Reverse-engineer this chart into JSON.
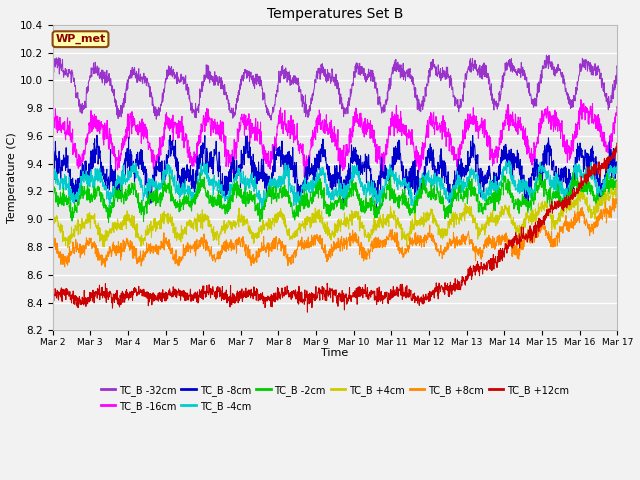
{
  "title": "Temperatures Set B",
  "xlabel": "Time",
  "ylabel": "Temperature (C)",
  "ylim": [
    8.2,
    10.4
  ],
  "xlim_days": [
    0,
    15
  ],
  "xtick_labels": [
    "Mar 2",
    "Mar 3",
    "Mar 4",
    "Mar 5",
    "Mar 6",
    "Mar 7",
    "Mar 8",
    "Mar 9",
    "Mar 10",
    "Mar 11",
    "Mar 12",
    "Mar 13",
    "Mar 14",
    "Mar 15",
    "Mar 16",
    "Mar 17"
  ],
  "series": [
    {
      "label": "TC_B -32cm",
      "color": "#9933CC",
      "base": 10.05,
      "amp1": 0.13,
      "amp2": 0.06,
      "period1": 1.0,
      "period2": 0.5,
      "trend_start": 0,
      "trend_end": 15,
      "trend_from": -0.02,
      "trend_to": -0.02,
      "noise": 0.025,
      "phase1": 0.0,
      "phase2": 1.0
    },
    {
      "label": "TC_B -16cm",
      "color": "#FF00FF",
      "base": 9.6,
      "amp1": 0.13,
      "amp2": 0.05,
      "period1": 1.0,
      "period2": 0.5,
      "trend_start": 0,
      "trend_end": 15,
      "trend_from": 0.0,
      "trend_to": 0.0,
      "noise": 0.04,
      "phase1": 0.3,
      "phase2": 1.5
    },
    {
      "label": "TC_B -8cm",
      "color": "#0000CC",
      "base": 9.35,
      "amp1": 0.1,
      "amp2": 0.06,
      "period1": 1.0,
      "period2": 0.4,
      "trend_start": 0,
      "trend_end": 15,
      "trend_from": 0.0,
      "trend_to": 0.0,
      "noise": 0.05,
      "phase1": 0.8,
      "phase2": 2.0
    },
    {
      "label": "TC_B -4cm",
      "color": "#00CCCC",
      "base": 9.25,
      "amp1": 0.07,
      "amp2": 0.04,
      "period1": 1.0,
      "period2": 0.45,
      "trend_start": 0,
      "trend_end": 15,
      "trend_from": 0.0,
      "trend_to": 0.0,
      "noise": 0.03,
      "phase1": 1.2,
      "phase2": 2.5
    },
    {
      "label": "TC_B -2cm",
      "color": "#00CC00",
      "base": 9.15,
      "amp1": 0.06,
      "amp2": 0.04,
      "period1": 1.0,
      "period2": 0.45,
      "trend_start": 0,
      "trend_end": 15,
      "trend_from": 0.0,
      "trend_to": 0.0,
      "noise": 0.03,
      "phase1": 1.6,
      "phase2": 3.0
    },
    {
      "label": "TC_B +4cm",
      "color": "#CCCC00",
      "base": 8.97,
      "amp1": 0.06,
      "amp2": 0.03,
      "period1": 1.0,
      "period2": 0.5,
      "trend_start": 0,
      "trend_end": 15,
      "trend_from": 0.0,
      "trend_to": 0.0,
      "noise": 0.025,
      "phase1": 2.0,
      "phase2": 0.5
    },
    {
      "label": "TC_B +8cm",
      "color": "#FF8800",
      "base": 8.8,
      "amp1": 0.05,
      "amp2": 0.03,
      "period1": 1.0,
      "period2": 0.5,
      "trend_start": 0,
      "trend_end": 15,
      "trend_from": 0.0,
      "trend_to": 0.0,
      "noise": 0.025,
      "phase1": 2.4,
      "phase2": 1.0
    },
    {
      "label": "TC_B +12cm",
      "color": "#CC0000",
      "base": 8.45,
      "amp1": 0.03,
      "amp2": 0.02,
      "period1": 1.0,
      "period2": 0.5,
      "trend_start": 10,
      "trend_end": 15,
      "trend_from": 0.0,
      "trend_to": 0.0,
      "noise": 0.025,
      "phase1": 0.0,
      "phase2": 0.0
    }
  ],
  "wp_met_label": "WP_met",
  "bg_color": "#E8E8E8",
  "grid_color": "#FFFFFF",
  "legend_ncol_row1": 6,
  "legend_fontsize": 7.5
}
